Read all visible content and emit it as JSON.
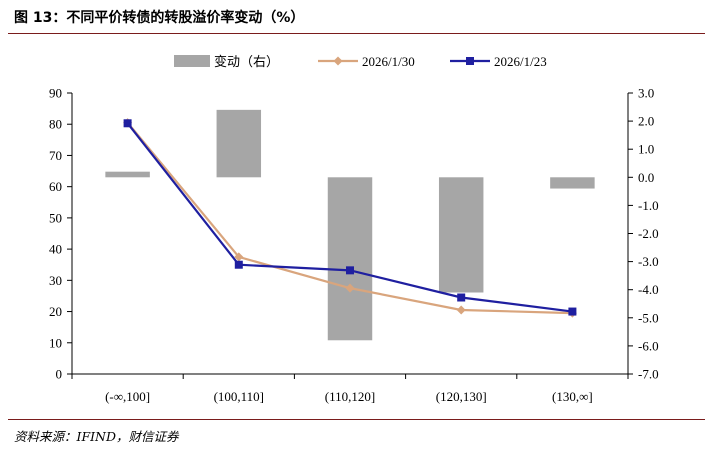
{
  "title": "图 13：不同平价转债的转股溢价率变动（%）",
  "source": "资料来源：IFIND，财信证券",
  "colors": {
    "bar": "#a6a6a6",
    "series_2026_1_30": "#d9a57d",
    "series_2026_1_23": "#1f1fa0",
    "axis": "#000000"
  },
  "chart_data": {
    "type": "bar+line",
    "categories": [
      "(-∞,100]",
      "(100,110]",
      "(110,120]",
      "(120,130]",
      "(130,∞]"
    ],
    "left_axis": {
      "ylim": [
        0,
        90
      ],
      "ticks": [
        "0",
        "10",
        "20",
        "30",
        "40",
        "50",
        "60",
        "70",
        "80",
        "90"
      ]
    },
    "right_axis": {
      "ylim": [
        -7.0,
        3.0
      ],
      "ticks": [
        "-7.0",
        "-6.0",
        "-5.0",
        "-4.0",
        "-3.0",
        "-2.0",
        "-1.0",
        "0.0",
        "1.0",
        "2.0",
        "3.0"
      ]
    },
    "legend_position": "top",
    "series": [
      {
        "name": "变动（右）",
        "type": "bar",
        "axis": "right",
        "values": [
          0.2,
          2.4,
          -5.8,
          -4.1,
          -0.4
        ]
      },
      {
        "name": "2026/1/30",
        "type": "line",
        "marker": "diamond",
        "axis": "left",
        "values": [
          80.5,
          37.5,
          27.5,
          20.5,
          19.5
        ]
      },
      {
        "name": "2026/1/23",
        "type": "line",
        "marker": "square",
        "axis": "left",
        "values": [
          80.3,
          35.0,
          33.2,
          24.5,
          20.0
        ]
      }
    ]
  }
}
